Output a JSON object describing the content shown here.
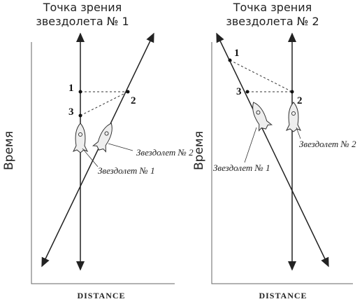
{
  "panels": [
    {
      "title": [
        "Точка зрения",
        "звездолета № 1"
      ],
      "y_axis_label": "Время",
      "x_axis_label": "DISTANCE",
      "points": [
        "1",
        "2",
        "3"
      ],
      "ships": [
        "Звездолет № 2",
        "Звездолет № 1"
      ]
    },
    {
      "title": [
        "Точка зрения",
        "звездолета № 2"
      ],
      "y_axis_label": "Время",
      "x_axis_label": "DISTANCE",
      "points": [
        "1",
        "3",
        "2"
      ],
      "ships": [
        "Звездолет № 2",
        "Звездолет № 1"
      ]
    }
  ]
}
